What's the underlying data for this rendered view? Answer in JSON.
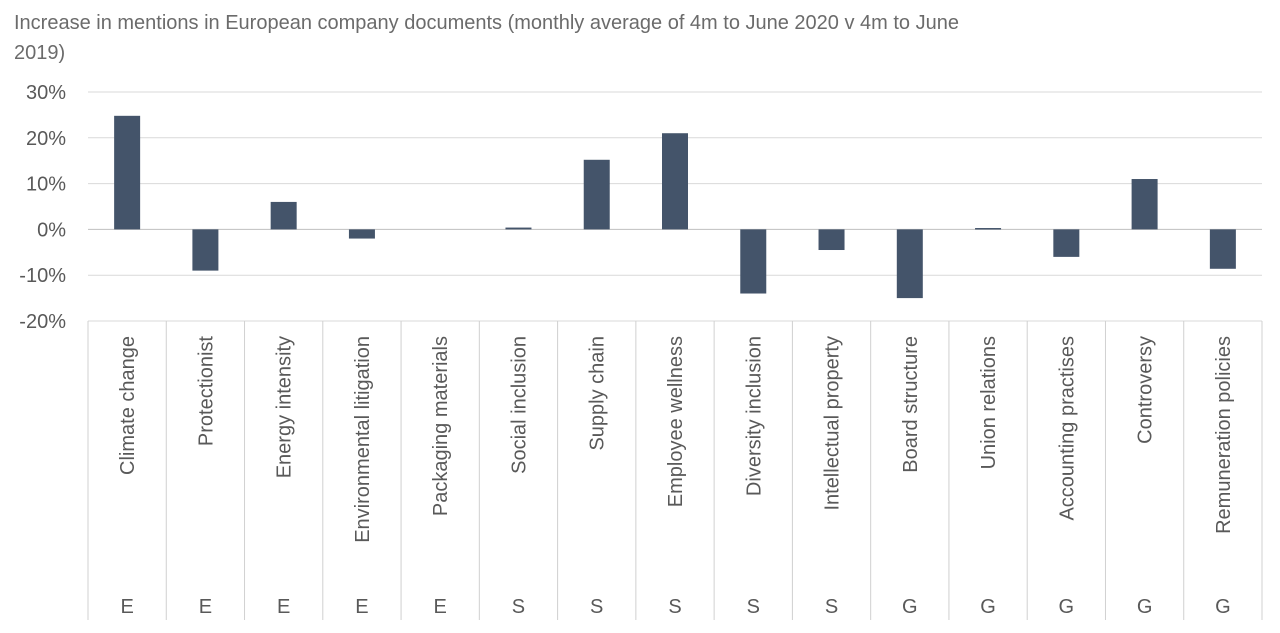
{
  "chart_data": {
    "type": "bar",
    "title": "Increase in mentions in European company documents (monthly average of 4m to June 2020 v 4m to June 2019)",
    "xlabel": "",
    "ylabel": "",
    "ylim": [
      -20,
      30
    ],
    "yticks": [
      30,
      20,
      10,
      0,
      -10,
      -20
    ],
    "ytick_labels": [
      "30%",
      "20%",
      "10%",
      "0%",
      "-10%",
      "-20%"
    ],
    "grid": true,
    "legend": "none",
    "bar_color": "#44546a",
    "categories": [
      "Climate change",
      "Protectionist",
      "Energy intensity",
      "Environmental litigation",
      "Packaging materials",
      "Social inclusion",
      "Supply chain",
      "Employee wellness",
      "Diversity inclusion",
      "Intellectual property",
      "Board structure",
      "Union relations",
      "Accounting practises",
      "Controversy",
      "Remuneration policies"
    ],
    "groups": [
      "E",
      "E",
      "E",
      "E",
      "E",
      "S",
      "S",
      "S",
      "S",
      "S",
      "G",
      "G",
      "G",
      "G",
      "G"
    ],
    "values": [
      24.8,
      -9.0,
      6.0,
      -2.0,
      0.0,
      0.4,
      15.2,
      21.0,
      -14.0,
      -4.5,
      -15.0,
      0.3,
      -6.0,
      11.0,
      -8.6
    ]
  }
}
